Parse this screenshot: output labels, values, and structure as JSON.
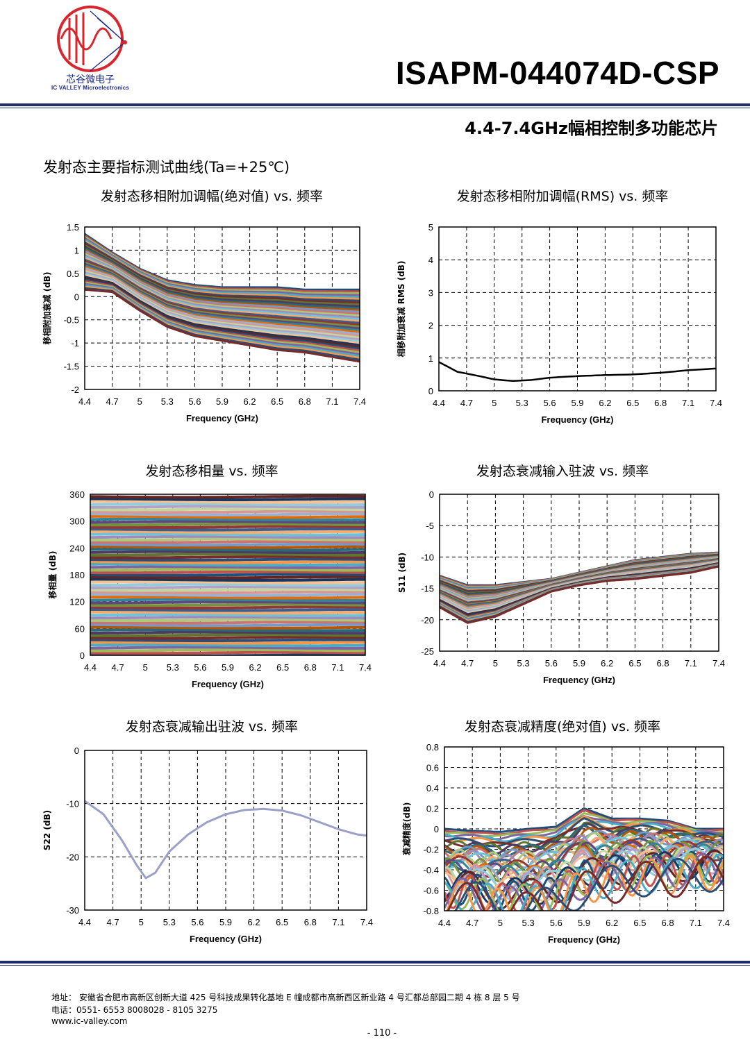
{
  "header": {
    "logo_cn": "芯谷微电子",
    "logo_en": "IC VALLEY Microelectronics",
    "part_number": "ISAPM-044074D-CSP",
    "subtitle": "4.4-7.4GHz幅相控制多功能芯片",
    "section_title": "发射态主要指标测试曲线(Ta=+25℃)"
  },
  "colors": {
    "rule": "#1f2c6e",
    "logo_red": "#d8262e",
    "logo_blue": "#1a2a8a"
  },
  "chart_titles": [
    "发射态移相附加调幅(绝对值) vs.  频率",
    "发射态移相附加调幅(RMS) vs.  频率",
    "发射态移相量   vs.  频率",
    "发射态衰减输入驻波   vs.  频率",
    "发射态衰减输出驻波   vs.  频率",
    "发射态衰减精度(绝对值) vs.  频率"
  ],
  "chart_data": [
    {
      "type": "line",
      "xlabel": "Frequency (GHz)",
      "ylabel": "移相附加衰减 (dB)",
      "xticks": [
        "4.4",
        "4.7",
        "5",
        "5.3",
        "5.6",
        "5.9",
        "6.2",
        "6.5",
        "6.8",
        "7.1",
        "7.4"
      ],
      "yticks": [
        "1.5",
        "1",
        "0.5",
        "0",
        "-0.5",
        "-1",
        "-1.5",
        "-2"
      ],
      "xlim": [
        4.4,
        7.4
      ],
      "ylim": [
        -2,
        1.5
      ],
      "grid": true,
      "series_description_count": 64,
      "envelope": {
        "x": [
          4.4,
          4.7,
          5.0,
          5.3,
          5.6,
          5.9,
          6.2,
          6.5,
          6.8,
          7.1,
          7.4
        ],
        "upper": [
          1.35,
          0.95,
          0.6,
          0.35,
          0.25,
          0.2,
          0.2,
          0.2,
          0.15,
          0.15,
          0.15
        ],
        "lower": [
          0.15,
          0.1,
          -0.3,
          -0.65,
          -0.85,
          -0.95,
          -1.05,
          -1.15,
          -1.2,
          -1.3,
          -1.4
        ]
      }
    },
    {
      "type": "line",
      "xlabel": "Frequency (GHz)",
      "ylabel": "相移附加衰减 RMS (dB)",
      "xticks": [
        "4.4",
        "4.7",
        "5",
        "5.3",
        "5.6",
        "5.9",
        "6.2",
        "6.5",
        "6.8",
        "7.1",
        "7.4"
      ],
      "yticks": [
        "5",
        "4",
        "3",
        "2",
        "1",
        "0"
      ],
      "xlim": [
        4.4,
        7.4
      ],
      "ylim": [
        0,
        5
      ],
      "grid": true,
      "series": [
        {
          "x": [
            4.4,
            4.6,
            4.8,
            5.0,
            5.2,
            5.4,
            5.6,
            5.9,
            6.2,
            6.5,
            6.8,
            7.1,
            7.4
          ],
          "values": [
            0.88,
            0.58,
            0.47,
            0.35,
            0.3,
            0.33,
            0.4,
            0.45,
            0.48,
            0.5,
            0.55,
            0.63,
            0.68
          ]
        }
      ]
    },
    {
      "type": "line",
      "xlabel": "Frequency (GHz)",
      "ylabel": "移相量  (dB)",
      "xticks": [
        "4.4",
        "4.7",
        "5",
        "5.3",
        "5.6",
        "5.9",
        "6.2",
        "6.5",
        "6.8",
        "7.1",
        "7.4"
      ],
      "yticks": [
        "360",
        "300",
        "240",
        "180",
        "120",
        "60",
        "0"
      ],
      "xlim": [
        4.4,
        7.4
      ],
      "ylim": [
        0,
        360
      ],
      "grid": true,
      "series_levels_deg_step": 5.625,
      "series_count": 64
    },
    {
      "type": "line",
      "xlabel": "Frequency (GHz)",
      "ylabel": "S11 (dB)",
      "xticks": [
        "4.4",
        "4.7",
        "5",
        "5.3",
        "5.6",
        "5.9",
        "6.2",
        "6.5",
        "6.8",
        "7.1",
        "7.4"
      ],
      "yticks": [
        "0",
        "-5",
        "-10",
        "-15",
        "-20",
        "-25"
      ],
      "xlim": [
        4.4,
        7.4
      ],
      "ylim": [
        -25,
        0
      ],
      "grid": true,
      "envelope": {
        "x": [
          4.4,
          4.7,
          5.0,
          5.3,
          5.6,
          5.9,
          6.2,
          6.5,
          6.8,
          7.1,
          7.4
        ],
        "upper": [
          -13,
          -14.5,
          -14.5,
          -14,
          -13.5,
          -12.5,
          -11.5,
          -10.5,
          -10,
          -9.5,
          -9.3
        ],
        "lower": [
          -18,
          -20.5,
          -19.5,
          -17.5,
          -15.5,
          -14.5,
          -13.8,
          -13.5,
          -13,
          -12.5,
          -11.5
        ]
      }
    },
    {
      "type": "line",
      "xlabel": "Frequency (GHz)",
      "ylabel": "S22 (dB)",
      "xticks": [
        "4.4",
        "4.7",
        "5",
        "5.3",
        "5.6",
        "5.9",
        "6.2",
        "6.5",
        "6.8",
        "7.1",
        "7.4"
      ],
      "yticks": [
        "0",
        "-10",
        "-20",
        "-30"
      ],
      "xlim": [
        4.4,
        7.4
      ],
      "ylim": [
        -30,
        0
      ],
      "grid": true,
      "series": [
        {
          "x": [
            4.4,
            4.6,
            4.8,
            4.95,
            5.05,
            5.15,
            5.3,
            5.5,
            5.7,
            5.9,
            6.1,
            6.3,
            6.5,
            6.7,
            6.9,
            7.1,
            7.3,
            7.4
          ],
          "values": [
            -9.5,
            -12,
            -17,
            -21.5,
            -24,
            -23,
            -19,
            -15.8,
            -13.5,
            -12,
            -11.2,
            -11,
            -11.3,
            -12.2,
            -13.5,
            -14.8,
            -15.8,
            -16
          ]
        }
      ]
    },
    {
      "type": "line",
      "xlabel": "Frequency (GHz)",
      "ylabel": "衰减精度(dB)",
      "xticks": [
        "4.4",
        "4.7",
        "5",
        "5.3",
        "5.6",
        "5.9",
        "6.2",
        "6.5",
        "6.8",
        "7.1",
        "7.4"
      ],
      "yticks": [
        "0.8",
        "0.6",
        "0.4",
        "0.2",
        "0",
        "-0.2",
        "-0.4",
        "-0.6",
        "-0.8"
      ],
      "xlim": [
        4.4,
        7.4
      ],
      "ylim": [
        -0.8,
        0.8
      ],
      "grid": true,
      "envelope": {
        "x": [
          4.4,
          4.7,
          5.0,
          5.3,
          5.6,
          5.9,
          6.2,
          6.5,
          6.8,
          7.1,
          7.4
        ],
        "upper": [
          0.0,
          -0.02,
          -0.03,
          0.0,
          0.02,
          0.2,
          0.1,
          0.1,
          0.08,
          0.0,
          0.0
        ],
        "lower": [
          -0.75,
          -0.7,
          -0.8,
          -0.8,
          -0.75,
          -0.6,
          -0.55,
          -0.5,
          -0.5,
          -0.45,
          -0.45
        ]
      }
    }
  ],
  "footer": {
    "address": "地址：  安徽省合肥市高新区创新大道 425 号科技成果转化基地 E 幢成都市高新西区新业路 4 号汇都总部园二期 4 栋 8 层 5 号",
    "tel": "电话：0551- 6553 8008028 - 8105 3275",
    "web": "www.ic-valley.com",
    "page": "- 110 -"
  }
}
